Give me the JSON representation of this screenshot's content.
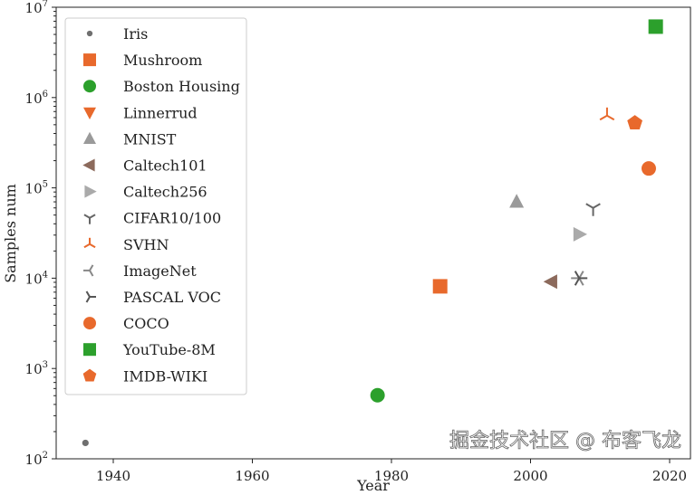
{
  "chart_data": {
    "type": "scatter",
    "xlabel": "Year",
    "ylabel": "Samples num",
    "xlim": [
      1932,
      2022
    ],
    "ylim": [
      100,
      10000000
    ],
    "yscale": "log",
    "xticks": [
      "1940",
      "1960",
      "1980",
      "2000",
      "2020"
    ],
    "xtick_values": [
      1940,
      1960,
      1980,
      2000,
      2020
    ],
    "yticks": [
      {
        "base": "10",
        "exp": "2"
      },
      {
        "base": "10",
        "exp": "3"
      },
      {
        "base": "10",
        "exp": "4"
      },
      {
        "base": "10",
        "exp": "5"
      },
      {
        "base": "10",
        "exp": "6"
      },
      {
        "base": "10",
        "exp": "7"
      }
    ],
    "ytick_values": [
      100,
      1000,
      10000,
      100000,
      1000000,
      10000000
    ],
    "grid": false,
    "legend_position": "top-left",
    "series": [
      {
        "name": "Iris",
        "marker": "point",
        "color": "#6f6f6f",
        "x": 1936,
        "y": 150
      },
      {
        "name": "Mushroom",
        "marker": "square",
        "color": "#e8692c",
        "x": 1987,
        "y": 8124
      },
      {
        "name": "Boston Housing",
        "marker": "circle",
        "color": "#2ca02c",
        "x": 1978,
        "y": 506
      },
      {
        "name": "Linnerrud",
        "marker": "triangle-down",
        "color": "#e8692c",
        "x": null,
        "y": null
      },
      {
        "name": "MNIST",
        "marker": "triangle-up",
        "color": "#9a9a9a",
        "x": 1998,
        "y": 70000
      },
      {
        "name": "Caltech101",
        "marker": "triangle-left",
        "color": "#8c6a5c",
        "x": 2003,
        "y": 9146
      },
      {
        "name": "Caltech256",
        "marker": "triangle-right",
        "color": "#aaaaaa",
        "x": 2007,
        "y": 30607
      },
      {
        "name": "CIFAR10/100",
        "marker": "tri-down",
        "color": "#666666",
        "x": 2009,
        "y": 60000
      },
      {
        "name": "SVHN",
        "marker": "tri-up",
        "color": "#e8692c",
        "x": 2011,
        "y": 630420
      },
      {
        "name": "ImageNet",
        "marker": "tri-left",
        "color": "#888888",
        "x": 2007,
        "y": 10000
      },
      {
        "name": "PASCAL VOC",
        "marker": "tri-right",
        "color": "#555555",
        "x": 2007,
        "y": 10000
      },
      {
        "name": "COCO",
        "marker": "octagon",
        "color": "#e8692c",
        "x": 2017,
        "y": 164000
      },
      {
        "name": "YouTube-8M",
        "marker": "square",
        "color": "#2ca02c",
        "x": 2018,
        "y": 6100000
      },
      {
        "name": "IMDB-WIKI",
        "marker": "pentagon",
        "color": "#e8692c",
        "x": 2015,
        "y": 523051
      }
    ]
  },
  "watermark": "掘金技术社区 @ 布客飞龙"
}
